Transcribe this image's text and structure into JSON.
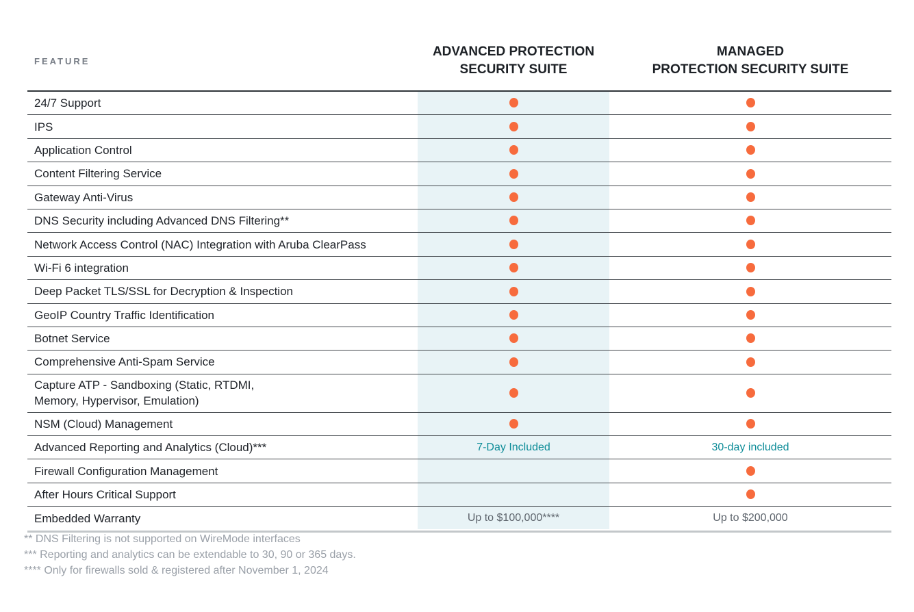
{
  "header": {
    "feature_label": "FEATURE",
    "columns": [
      {
        "line1": "ADVANCED PROTECTION",
        "line2": "SECURITY SUITE"
      },
      {
        "line1": "MANAGED",
        "line2": "PROTECTION SECURITY SUITE"
      }
    ]
  },
  "rows": [
    {
      "feature": "24/7 Support",
      "advanced": {
        "type": "dot"
      },
      "managed": {
        "type": "dot"
      }
    },
    {
      "feature": "IPS",
      "advanced": {
        "type": "dot"
      },
      "managed": {
        "type": "dot"
      }
    },
    {
      "feature": "Application Control",
      "advanced": {
        "type": "dot"
      },
      "managed": {
        "type": "dot"
      }
    },
    {
      "feature": "Content Filtering Service",
      "advanced": {
        "type": "dot"
      },
      "managed": {
        "type": "dot"
      }
    },
    {
      "feature": "Gateway Anti-Virus",
      "advanced": {
        "type": "dot"
      },
      "managed": {
        "type": "dot"
      }
    },
    {
      "feature": "DNS Security including Advanced DNS Filtering**",
      "advanced": {
        "type": "dot"
      },
      "managed": {
        "type": "dot"
      }
    },
    {
      "feature": "Network Access Control (NAC) Integration with Aruba ClearPass",
      "advanced": {
        "type": "dot"
      },
      "managed": {
        "type": "dot"
      }
    },
    {
      "feature": "Wi-Fi 6 integration",
      "advanced": {
        "type": "dot"
      },
      "managed": {
        "type": "dot"
      }
    },
    {
      "feature": "Deep Packet TLS/SSL for Decryption & Inspection",
      "advanced": {
        "type": "dot"
      },
      "managed": {
        "type": "dot"
      }
    },
    {
      "feature": "GeoIP Country Traffic Identification",
      "advanced": {
        "type": "dot"
      },
      "managed": {
        "type": "dot"
      }
    },
    {
      "feature": "Botnet Service",
      "advanced": {
        "type": "dot"
      },
      "managed": {
        "type": "dot"
      }
    },
    {
      "feature": "Comprehensive Anti-Spam Service",
      "advanced": {
        "type": "dot"
      },
      "managed": {
        "type": "dot"
      }
    },
    {
      "feature": "Capture ATP -  Sandboxing (Static, RTDMI,\nMemory, Hypervisor, Emulation)",
      "tall": true,
      "advanced": {
        "type": "dot"
      },
      "managed": {
        "type": "dot"
      }
    },
    {
      "feature": "NSM (Cloud) Management",
      "advanced": {
        "type": "dot"
      },
      "managed": {
        "type": "dot"
      }
    },
    {
      "feature": "Advanced Reporting and Analytics (Cloud)***",
      "advanced": {
        "type": "text",
        "style": "teal",
        "text": "7-Day Included"
      },
      "managed": {
        "type": "text",
        "style": "teal",
        "text": "30-day included"
      }
    },
    {
      "feature": "Firewall Configuration Management",
      "advanced": {
        "type": "empty"
      },
      "managed": {
        "type": "dot"
      }
    },
    {
      "feature": "After Hours Critical Support",
      "advanced": {
        "type": "empty"
      },
      "managed": {
        "type": "dot"
      }
    },
    {
      "feature": "Embedded Warranty",
      "advanced": {
        "type": "text",
        "style": "gray",
        "text": "Up to $100,000****"
      },
      "managed": {
        "type": "text",
        "style": "gray",
        "text": "Up to $200,000"
      }
    }
  ],
  "footnotes": [
    "** DNS Filtering is not supported on WireMode interfaces",
    "*** Reporting and analytics can be extendable to 30, 90 or 365 days.",
    "**** Only for firewalls sold & registered after November 1, 2024"
  ],
  "colors": {
    "accent_dot": "#f76b3d",
    "column_band": "#e8f3f6",
    "teal_text": "#0d8c98",
    "gray_value": "#5d646c",
    "footnote": "#9aa0a8",
    "feature_text": "#1e2228",
    "header_text": "#1d2126",
    "feature_label": "#767c85",
    "divider": "#41464b"
  }
}
